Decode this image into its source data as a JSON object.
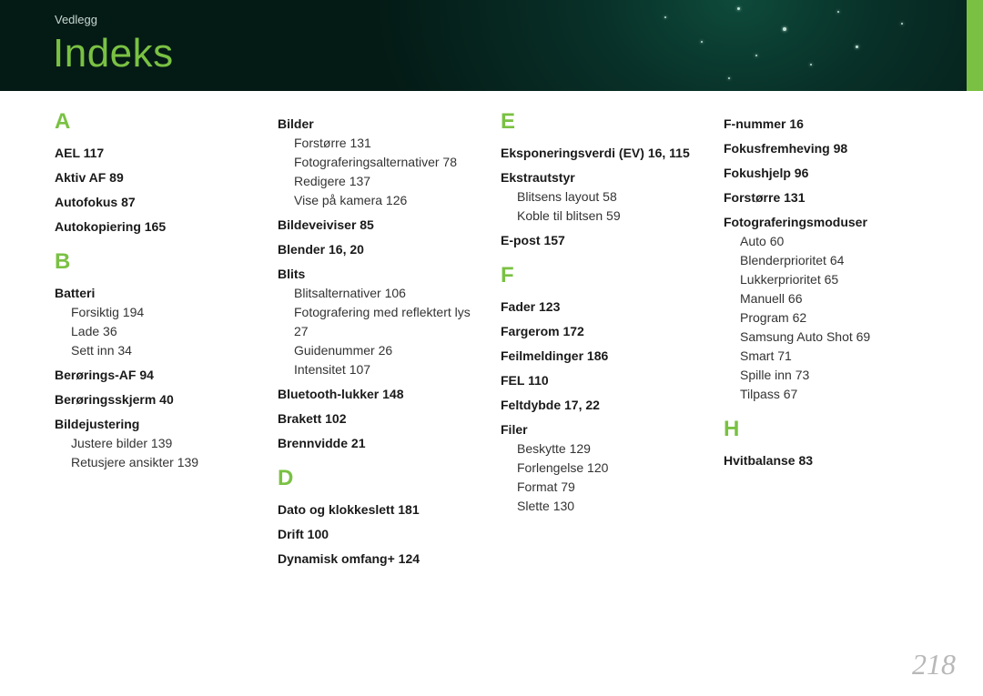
{
  "breadcrumb": "Vedlegg",
  "title": "Indeks",
  "page_number": "218",
  "colors": {
    "accent": "#7ac143",
    "header_bg": "#041a15",
    "text": "#1a1a1a",
    "pagenum": "#b8b8b8",
    "breadcrumb": "#c8d8d0"
  },
  "columns": [
    {
      "groups": [
        {
          "letter": "A",
          "items": [
            {
              "t": "entry",
              "text": "AEL  117"
            },
            {
              "t": "entry",
              "text": "Aktiv AF  89"
            },
            {
              "t": "entry",
              "text": "Autofokus  87"
            },
            {
              "t": "entry",
              "text": "Autokopiering  165"
            }
          ]
        },
        {
          "letter": "B",
          "items": [
            {
              "t": "entry",
              "text": "Batteri"
            },
            {
              "t": "sub",
              "text": "Forsiktig  194"
            },
            {
              "t": "sub",
              "text": "Lade  36"
            },
            {
              "t": "sub",
              "text": "Sett inn  34"
            },
            {
              "t": "entry",
              "text": "Berørings-AF  94"
            },
            {
              "t": "entry",
              "text": "Berøringsskjerm  40"
            },
            {
              "t": "entry",
              "text": "Bildejustering"
            },
            {
              "t": "sub",
              "text": "Justere bilder  139"
            },
            {
              "t": "sub",
              "text": "Retusjere ansikter  139"
            }
          ]
        }
      ]
    },
    {
      "groups": [
        {
          "letter": "",
          "items": [
            {
              "t": "entry",
              "text": "Bilder"
            },
            {
              "t": "sub",
              "text": "Forstørre  131"
            },
            {
              "t": "sub",
              "text": "Fotograferingsalternativer  78"
            },
            {
              "t": "sub",
              "text": "Redigere  137"
            },
            {
              "t": "sub",
              "text": "Vise på kamera  126"
            },
            {
              "t": "entry",
              "text": "Bildeveiviser  85"
            },
            {
              "t": "entry",
              "text": "Blender  16, 20"
            },
            {
              "t": "entry",
              "text": "Blits"
            },
            {
              "t": "sub",
              "text": "Blitsalternativer  106"
            },
            {
              "t": "sub",
              "text": "Fotografering med reflektert lys  27"
            },
            {
              "t": "sub",
              "text": "Guidenummer  26"
            },
            {
              "t": "sub",
              "text": "Intensitet  107"
            },
            {
              "t": "entry",
              "text": "Bluetooth-lukker  148"
            },
            {
              "t": "entry",
              "text": "Brakett  102"
            },
            {
              "t": "entry",
              "text": "Brennvidde  21"
            }
          ]
        },
        {
          "letter": "D",
          "items": [
            {
              "t": "entry",
              "text": "Dato og klokkeslett  181"
            },
            {
              "t": "entry",
              "text": "Drift  100"
            },
            {
              "t": "entry",
              "text": "Dynamisk omfang+  124"
            }
          ]
        }
      ]
    },
    {
      "groups": [
        {
          "letter": "E",
          "items": [
            {
              "t": "entry",
              "text": "Eksponeringsverdi (EV)  16, 115"
            },
            {
              "t": "entry",
              "text": "Ekstrautstyr"
            },
            {
              "t": "sub",
              "text": "Blitsens layout  58"
            },
            {
              "t": "sub",
              "text": "Koble til blitsen  59"
            },
            {
              "t": "entry",
              "text": "E-post  157"
            }
          ]
        },
        {
          "letter": "F",
          "items": [
            {
              "t": "entry",
              "text": "Fader  123"
            },
            {
              "t": "entry",
              "text": "Fargerom  172"
            },
            {
              "t": "entry",
              "text": "Feilmeldinger  186"
            },
            {
              "t": "entry",
              "text": "FEL  110"
            },
            {
              "t": "entry",
              "text": "Feltdybde  17, 22"
            },
            {
              "t": "entry",
              "text": "Filer"
            },
            {
              "t": "sub",
              "text": "Beskytte  129"
            },
            {
              "t": "sub",
              "text": "Forlengelse  120"
            },
            {
              "t": "sub",
              "text": "Format  79"
            },
            {
              "t": "sub",
              "text": "Slette  130"
            }
          ]
        }
      ]
    },
    {
      "groups": [
        {
          "letter": "",
          "items": [
            {
              "t": "entry",
              "text": "F-nummer  16"
            },
            {
              "t": "entry",
              "text": "Fokusfremheving  98"
            },
            {
              "t": "entry",
              "text": "Fokushjelp  96"
            },
            {
              "t": "entry",
              "text": "Forstørre  131"
            },
            {
              "t": "entry",
              "text": "Fotograferingsmoduser"
            },
            {
              "t": "sub",
              "text": "Auto  60"
            },
            {
              "t": "sub",
              "text": "Blenderprioritet  64"
            },
            {
              "t": "sub",
              "text": "Lukkerprioritet  65"
            },
            {
              "t": "sub",
              "text": "Manuell  66"
            },
            {
              "t": "sub",
              "text": "Program  62"
            },
            {
              "t": "sub",
              "text": "Samsung Auto Shot  69"
            },
            {
              "t": "sub",
              "text": "Smart  71"
            },
            {
              "t": "sub",
              "text": "Spille inn  73"
            },
            {
              "t": "sub",
              "text": "Tilpass  67"
            }
          ]
        },
        {
          "letter": "H",
          "items": [
            {
              "t": "entry",
              "text": "Hvitbalanse  83"
            }
          ]
        }
      ]
    }
  ]
}
